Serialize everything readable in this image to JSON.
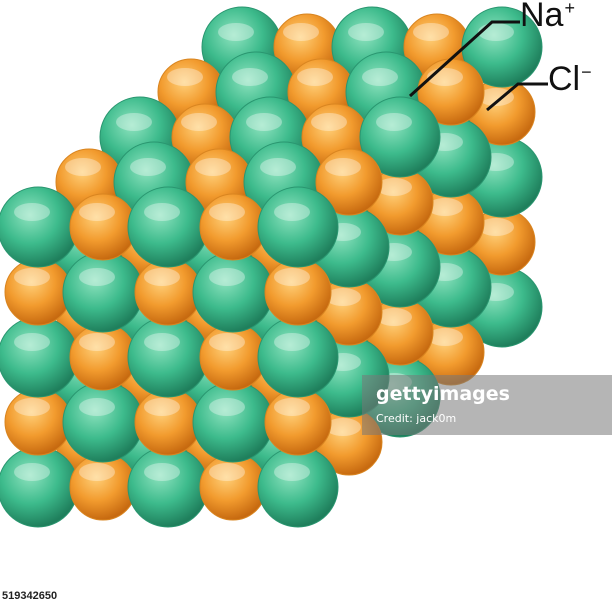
{
  "labels": {
    "sodium": "Na",
    "sodium_charge": "+",
    "chloride": "Cl",
    "chloride_charge": "−"
  },
  "colors": {
    "sodium": "#f29b2e",
    "chloride": "#3dbb8c",
    "leader_line": "#111111"
  },
  "watermark": {
    "brand": "gettyimages",
    "credit": "Credit: jack0m"
  },
  "stock_id": "519342650"
}
